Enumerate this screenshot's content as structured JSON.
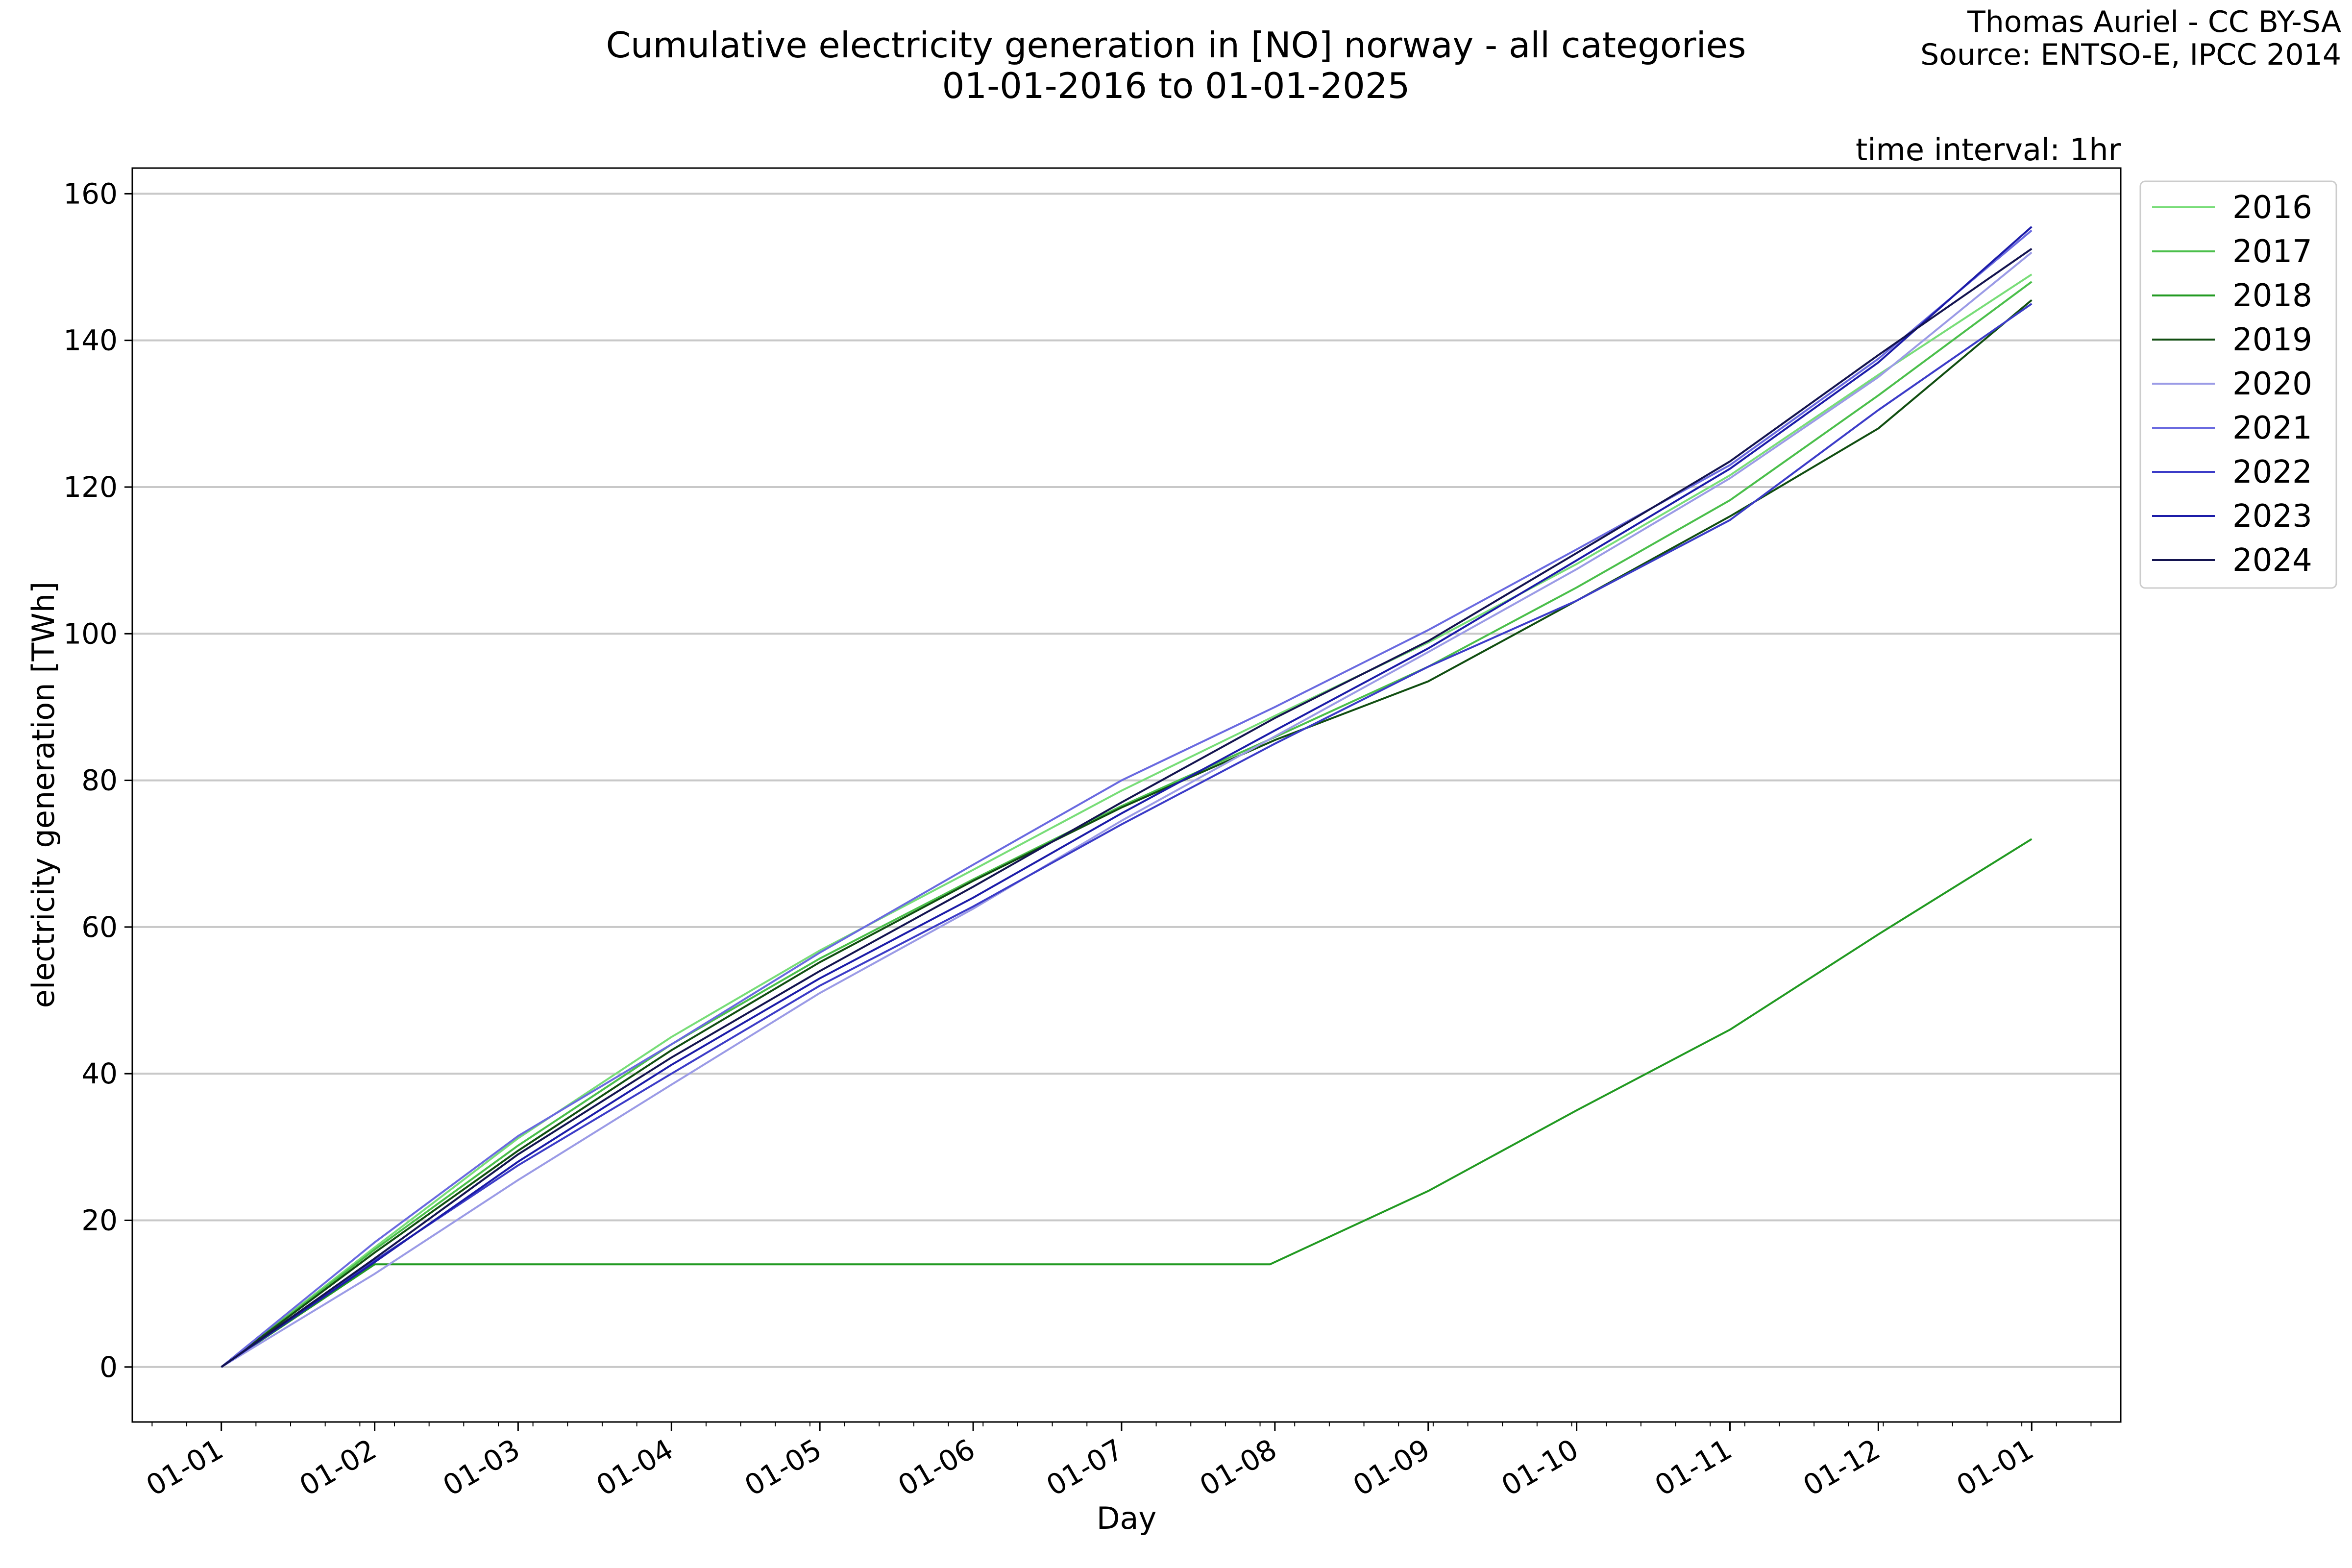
{
  "chart_data": {
    "type": "line",
    "title": "Cumulative electricity generation in [NO] norway - all categories",
    "subtitle": "01-01-2016 to 01-01-2025",
    "credit": [
      "Thomas Auriel - CC BY-SA",
      "Source: ENTSO-E, IPCC 2014"
    ],
    "note": "time interval: 1hr",
    "xlabel": "Day",
    "ylabel": "electricity generation [TWh]",
    "x_tick_labels": [
      "01-01",
      "01-02",
      "01-03",
      "01-04",
      "01-05",
      "01-06",
      "01-07",
      "01-08",
      "01-09",
      "01-10",
      "01-11",
      "01-12",
      "01-01"
    ],
    "x_tick_days": [
      0,
      31,
      60,
      91,
      121,
      152,
      182,
      213,
      244,
      274,
      305,
      335,
      366
    ],
    "xlim": [
      -18,
      384
    ],
    "y_ticks": [
      0,
      20,
      40,
      60,
      80,
      100,
      120,
      140,
      160
    ],
    "ylim": [
      -7.5,
      163.5
    ],
    "grid": "horizontal",
    "legend_position": "outside right",
    "series": [
      {
        "name": "2016",
        "color": "#78dd78",
        "x": [
          0,
          31,
          60,
          91,
          121,
          152,
          182,
          213,
          244,
          274,
          305,
          335,
          366
        ],
        "y": [
          0,
          16.3,
          31.2,
          45.0,
          56.8,
          67.8,
          78.6,
          88.8,
          98.8,
          109.5,
          121.6,
          135.3,
          149.0
        ]
      },
      {
        "name": "2017",
        "color": "#4bbf4b",
        "x": [
          0,
          31,
          60,
          91,
          121,
          152,
          182,
          213,
          244,
          274,
          305,
          335,
          366
        ],
        "y": [
          0,
          16.0,
          30.2,
          44.0,
          55.7,
          66.5,
          76.5,
          85.9,
          95.5,
          106.3,
          118.2,
          132.5,
          148.0
        ]
      },
      {
        "name": "2018",
        "color": "#229a22",
        "x": [
          0,
          31,
          31,
          212,
          244,
          274,
          305,
          335,
          366
        ],
        "y": [
          0,
          14.0,
          14.0,
          14.0,
          24.0,
          35.0,
          46.0,
          59.0,
          72.0
        ]
      },
      {
        "name": "2019",
        "color": "#114e11",
        "x": [
          0,
          31,
          60,
          91,
          121,
          152,
          182,
          213,
          244,
          274,
          305,
          335,
          366
        ],
        "y": [
          0,
          15.6,
          29.5,
          43.2,
          55.2,
          66.3,
          76.3,
          85.5,
          93.5,
          104.5,
          116.0,
          128.0,
          145.5
        ]
      },
      {
        "name": "2020",
        "color": "#9b9be6",
        "x": [
          0,
          31,
          60,
          91,
          121,
          152,
          182,
          213,
          244,
          274,
          305,
          335,
          366
        ],
        "y": [
          0,
          12.7,
          25.5,
          38.5,
          51.0,
          62.5,
          74.5,
          86.0,
          97.5,
          108.8,
          121.2,
          135.0,
          152.0
        ]
      },
      {
        "name": "2021",
        "color": "#6a6ae0",
        "x": [
          0,
          31,
          60,
          91,
          121,
          152,
          182,
          213,
          244,
          274,
          305,
          335,
          366
        ],
        "y": [
          0,
          17.0,
          31.5,
          44.0,
          56.5,
          68.5,
          80.0,
          90.0,
          100.5,
          111.5,
          123.0,
          137.5,
          155.0
        ]
      },
      {
        "name": "2022",
        "color": "#3c3cc8",
        "x": [
          0,
          31,
          60,
          91,
          121,
          152,
          182,
          213,
          244,
          274,
          305,
          335,
          366
        ],
        "y": [
          0,
          14.5,
          27.5,
          40.0,
          52.0,
          62.8,
          74.0,
          85.0,
          95.5,
          104.5,
          115.5,
          130.5,
          145.0
        ]
      },
      {
        "name": "2023",
        "color": "#1c1ca8",
        "x": [
          0,
          31,
          60,
          91,
          121,
          152,
          182,
          213,
          244,
          274,
          305,
          335,
          366
        ],
        "y": [
          0,
          14.3,
          28.0,
          41.2,
          53.0,
          64.0,
          75.5,
          86.8,
          98.0,
          110.0,
          122.5,
          137.0,
          155.5
        ]
      },
      {
        "name": "2024",
        "color": "#141450",
        "x": [
          0,
          31,
          60,
          91,
          121,
          152,
          182,
          213,
          244,
          274,
          305,
          335,
          366
        ],
        "y": [
          0,
          14.8,
          29.0,
          42.2,
          54.0,
          65.5,
          77.0,
          88.5,
          99.0,
          111.0,
          123.5,
          138.0,
          152.5
        ]
      }
    ]
  }
}
